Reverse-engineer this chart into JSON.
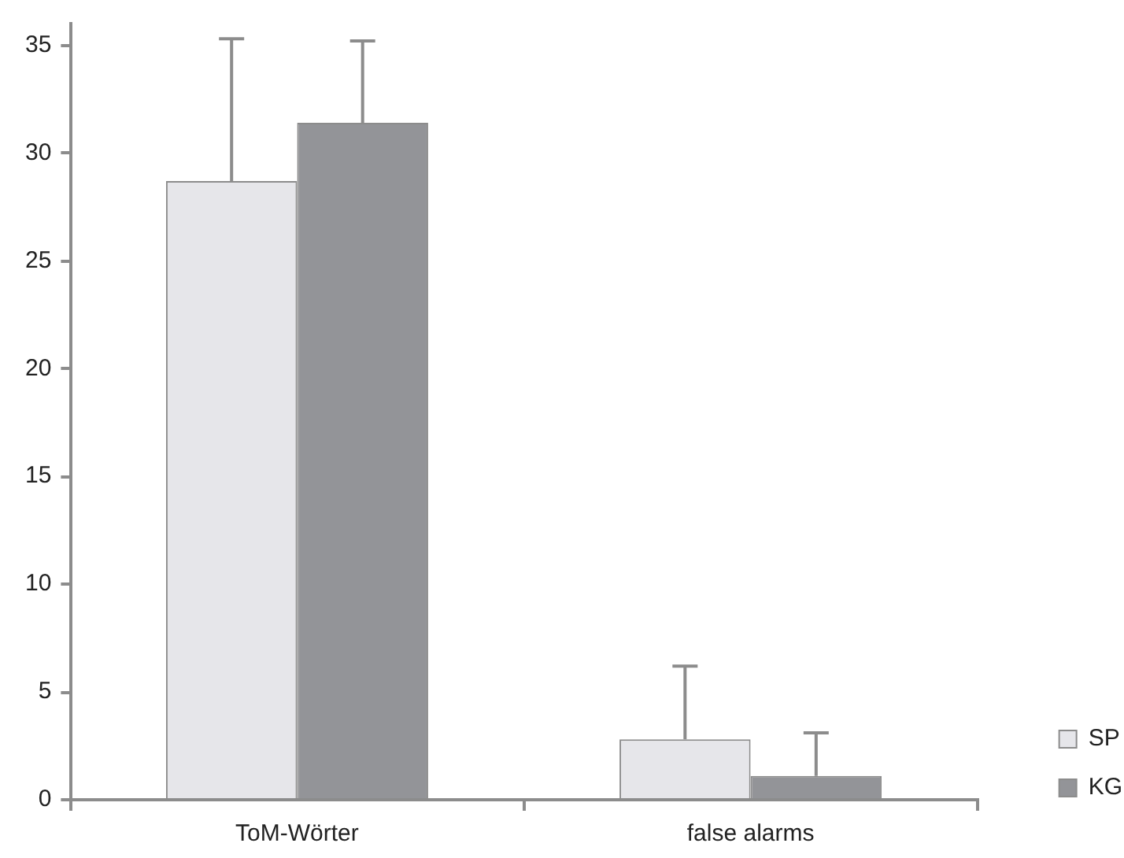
{
  "chart_data": {
    "type": "bar",
    "categories": [
      "ToM-Wörter",
      "false alarms"
    ],
    "series": [
      {
        "name": "SP",
        "color": "#e6e6ea",
        "values": [
          28.7,
          2.8
        ],
        "errors": [
          [
            28.7,
            35.3
          ],
          [
            2.8,
            6.2
          ]
        ]
      },
      {
        "name": "KG",
        "color": "#939498",
        "values": [
          31.4,
          1.1
        ],
        "errors": [
          [
            31.4,
            35.2
          ],
          [
            1.1,
            3.1
          ]
        ]
      }
    ],
    "ylim": [
      0,
      36
    ],
    "yticks": [
      0,
      5,
      10,
      15,
      20,
      25,
      30,
      35
    ],
    "grid": false,
    "legend": "bottom right"
  }
}
